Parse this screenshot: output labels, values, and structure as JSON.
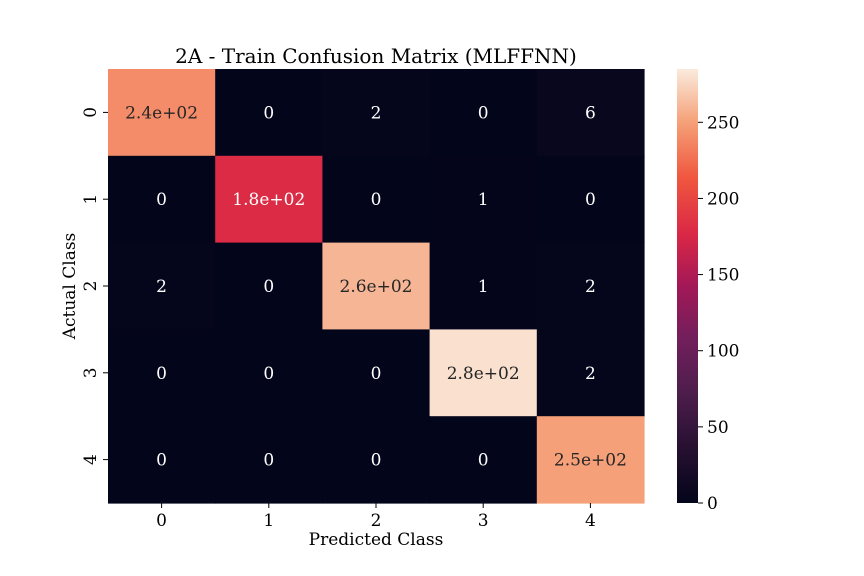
{
  "chart_data": {
    "type": "heatmap",
    "title": "2A - Train Confusion Matrix (MLFFNN)",
    "xlabel": "Predicted Class",
    "ylabel": "Actual Class",
    "x_categories": [
      "0",
      "1",
      "2",
      "3",
      "4"
    ],
    "y_categories": [
      "0",
      "1",
      "2",
      "3",
      "4"
    ],
    "values": [
      [
        240,
        0,
        2,
        0,
        6
      ],
      [
        0,
        180,
        0,
        1,
        0
      ],
      [
        2,
        0,
        260,
        1,
        2
      ],
      [
        0,
        0,
        0,
        280,
        2
      ],
      [
        0,
        0,
        0,
        0,
        250
      ]
    ],
    "annotations": [
      [
        "2.4e+02",
        "0",
        "2",
        "0",
        "6"
      ],
      [
        "0",
        "1.8e+02",
        "0",
        "1",
        "0"
      ],
      [
        "2",
        "0",
        "2.6e+02",
        "1",
        "2"
      ],
      [
        "0",
        "0",
        "0",
        "2.8e+02",
        "2"
      ],
      [
        "0",
        "0",
        "0",
        "0",
        "2.5e+02"
      ]
    ],
    "colorbar": {
      "range": [
        0,
        285
      ],
      "ticks": [
        "0",
        "50",
        "100",
        "150",
        "200",
        "250"
      ],
      "colormap": "rocket"
    }
  }
}
